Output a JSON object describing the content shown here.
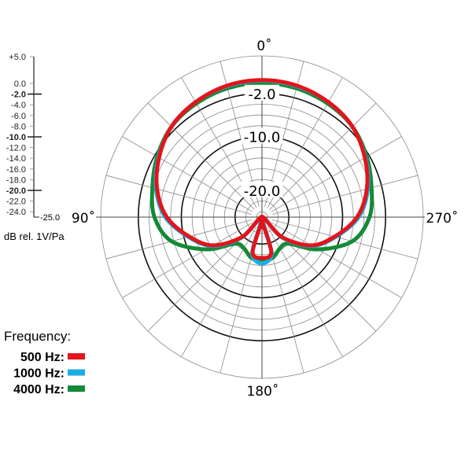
{
  "chart_data": {
    "type": "polar-line",
    "scale": {
      "unit_label": "dB rel. 1V/Pa",
      "min": -25.0,
      "max": 5.0,
      "tick_labels": [
        "+5.0",
        "0.0",
        "-2.0",
        "-4.0",
        "-6.0",
        "-8.0",
        "-10.0",
        "-12.0",
        "-14.0",
        "-16.0",
        "-18.0",
        "-20.0",
        "-22.0",
        "-24.0",
        "-25.0"
      ],
      "tick_values": [
        5,
        0,
        -2,
        -4,
        -6,
        -8,
        -10,
        -12,
        -14,
        -16,
        -18,
        -20,
        -22,
        -24,
        -25
      ],
      "major_ticks": [
        -2,
        -10,
        -20
      ]
    },
    "ring_labels": [
      "-2.0",
      "-10.0",
      "-20.0"
    ],
    "ring_label_values": [
      -2,
      -10,
      -20
    ],
    "angle_labels": {
      "top": "0˚",
      "left": "90˚",
      "right": "270˚",
      "bottom": "180˚"
    },
    "grid": true,
    "angle_step_deg": 15,
    "angles_deg": [
      0,
      15,
      30,
      45,
      60,
      75,
      90,
      105,
      120,
      135,
      150,
      165,
      180
    ],
    "symmetric": true,
    "legend_title": "Frequency:",
    "legend_position": "bottom-left",
    "series": [
      {
        "name": "4000 Hz:",
        "color": "#138a36",
        "values": [
          0.0,
          -0.2,
          -0.6,
          -1.2,
          -2.5,
          -3.9,
          -5.0,
          -7.6,
          -13.0,
          -18.0,
          -18.3,
          -17.2,
          -16.8
        ]
      },
      {
        "name": "1000 Hz:",
        "color": "#1aaee5",
        "values": [
          0.4,
          0.2,
          -0.3,
          -1.2,
          -2.8,
          -4.6,
          -7.0,
          -10.8,
          -14.3,
          -19.5,
          -24.5,
          -18.0,
          -16.4
        ]
      },
      {
        "name": "500 Hz:",
        "color": "#e3141b",
        "values": [
          0.5,
          0.3,
          -0.3,
          -1.2,
          -2.9,
          -4.8,
          -7.3,
          -11.0,
          -14.5,
          -19.8,
          -25.0,
          -18.3,
          -17.4
        ]
      }
    ],
    "legend_order": [
      "500 Hz:",
      "1000 Hz:",
      "4000 Hz:"
    ]
  }
}
